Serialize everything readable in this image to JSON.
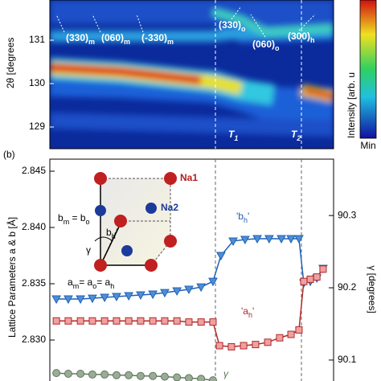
{
  "chart_data": [
    {
      "type": "heatmap",
      "ylabel": "2θ [degrees",
      "ylim": [
        128.5,
        131.926
      ],
      "yticks": [
        129,
        130,
        131
      ],
      "colorbar": {
        "label": "Intensity [arb. u",
        "min_label": "Min"
      },
      "annotations": [
        [
          {
            "text": "(330)"
          },
          {
            "sub": "m"
          }
        ],
        [
          {
            "text": "(060)"
          },
          {
            "sub": "m"
          }
        ],
        [
          {
            "text": "(-330)"
          },
          {
            "sub": "m"
          }
        ],
        [
          {
            "text": "(330)"
          },
          {
            "sub": "o"
          }
        ],
        [
          {
            "text": "(060)"
          },
          {
            "sub": "o"
          }
        ],
        [
          {
            "text": "(300)"
          },
          {
            "sub": "h"
          }
        ],
        [
          {
            "text": "T"
          },
          {
            "sub": "1"
          }
        ],
        [
          {
            "text": "T"
          },
          {
            "sub": "2"
          }
        ]
      ]
    },
    {
      "type": "line",
      "panel_label": "(b)",
      "ylabel": "Lattice Parameters a & b [Å]",
      "y2label": "γ [degrees]",
      "xlim": [
        0,
        100
      ],
      "ylim": [
        2.82636,
        2.84607
      ],
      "y2lim": [
        90.071,
        90.378
      ],
      "yticks": [
        {
          "value": 2.83,
          "label": "2.830"
        },
        2.835,
        {
          "value": 2.84,
          "label": "2.840"
        },
        2.845
      ],
      "y2ticks": [
        90.1,
        90.2,
        90.3
      ],
      "series": [
        {
          "name": "b",
          "color": "#1f5fb5",
          "marker": "triangle",
          "x": [
            2.3,
            6.5,
            10.8,
            15.0,
            19.3,
            23.5,
            27.8,
            32.0,
            36.3,
            40.5,
            44.8,
            49.0,
            53.3,
            57.5,
            60.3,
            64.6,
            68.8,
            73.1,
            77.3,
            81.6,
            85.0,
            87.8,
            89.5,
            91.8,
            94.1,
            96.3
          ],
          "values": [
            2.83364,
            2.83364,
            2.83364,
            2.83371,
            2.83379,
            2.83386,
            2.83393,
            2.834,
            2.83407,
            2.83421,
            2.83436,
            2.8345,
            2.83471,
            2.83521,
            2.8375,
            2.83879,
            2.83893,
            2.839,
            2.839,
            2.839,
            2.839,
            2.839,
            2.83507,
            2.83521,
            2.8355,
            2.83636
          ]
        },
        {
          "name": "a",
          "color": "#b02a2a",
          "marker": "square",
          "x": [
            2.3,
            6.5,
            10.8,
            15.0,
            19.3,
            23.5,
            27.8,
            32.0,
            36.3,
            40.5,
            44.8,
            49.0,
            53.3,
            57.5,
            59.8,
            64.0,
            68.3,
            72.5,
            76.8,
            81.0,
            85.0,
            87.8,
            89.5,
            91.8,
            94.1,
            96.3
          ],
          "values": [
            2.8317,
            2.8317,
            2.8317,
            2.8317,
            2.8317,
            2.8317,
            2.8317,
            2.8317,
            2.8317,
            2.8317,
            2.8317,
            2.8316,
            2.8316,
            2.8316,
            2.8295,
            2.8294,
            2.8295,
            2.8296,
            2.8298,
            2.8302,
            2.8305,
            2.8309,
            2.8352,
            2.8354,
            2.8356,
            2.8363
          ]
        },
        {
          "name": "γ",
          "color": "#5f7a5c",
          "marker": "circle",
          "axis": "y2",
          "x": [
            2.3,
            6.5,
            10.8,
            15.0,
            19.3,
            23.5,
            27.8,
            32.0,
            36.3,
            40.5,
            44.8,
            49.0,
            53.3,
            57.5
          ],
          "values": [
            90.082,
            90.081,
            90.081,
            90.08,
            90.08,
            90.079,
            90.079,
            90.078,
            90.078,
            90.077,
            90.076,
            90.075,
            90.074,
            90.072
          ]
        }
      ],
      "annotations": [
        [
          {
            "text": "'b"
          },
          {
            "sub": "h"
          },
          {
            "text": "'"
          }
        ],
        [
          {
            "text": "'a"
          },
          {
            "sub": "h"
          },
          {
            "text": "'"
          }
        ]
      ],
      "inset": [
        [
          {
            "text": "Na1"
          }
        ],
        [
          {
            "text": "Na2"
          }
        ],
        [
          {
            "text": "b"
          },
          {
            "sub": "m"
          },
          {
            "text": " = b"
          },
          {
            "sub": "o"
          }
        ],
        [
          {
            "text": "b"
          },
          {
            "sub": "h"
          }
        ],
        [
          {
            "text": "γ"
          }
        ],
        [
          {
            "text": "a"
          },
          {
            "sub": "m"
          },
          {
            "text": "= a"
          },
          {
            "sub": "o"
          },
          {
            "text": "= a"
          },
          {
            "sub": "h"
          }
        ]
      ]
    }
  ]
}
